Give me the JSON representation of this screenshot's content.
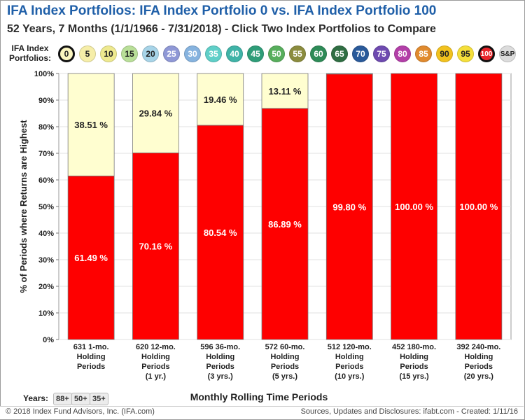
{
  "header": {
    "title": "IFA Index Portfolios:  IFA Index Portfolio 0 vs. IFA Index Portfolio 100",
    "subtitle": "52 Years, 7 Months (1/1/1966 - 7/31/2018)  - Click Two Index Portfolios to Compare"
  },
  "portfolio_selector": {
    "label_line1": "IFA Index",
    "label_line2": "Portfolios:",
    "items": [
      {
        "label": "0",
        "color": "#fbf6c0",
        "selected": true
      },
      {
        "label": "5",
        "color": "#f6eea8",
        "selected": false
      },
      {
        "label": "10",
        "color": "#eee98f",
        "selected": false
      },
      {
        "label": "15",
        "color": "#b9df98",
        "selected": false
      },
      {
        "label": "20",
        "color": "#a7d4e8",
        "selected": false
      },
      {
        "label": "25",
        "color": "#8f98d6",
        "selected": false
      },
      {
        "label": "30",
        "color": "#86b3df",
        "selected": false
      },
      {
        "label": "35",
        "color": "#5fcfc8",
        "selected": false
      },
      {
        "label": "40",
        "color": "#3fb3a7",
        "selected": false
      },
      {
        "label": "45",
        "color": "#2e9d78",
        "selected": false
      },
      {
        "label": "50",
        "color": "#57ae5c",
        "selected": false
      },
      {
        "label": "55",
        "color": "#8b8c3e",
        "selected": false
      },
      {
        "label": "60",
        "color": "#2e8b57",
        "selected": false
      },
      {
        "label": "65",
        "color": "#2f6e43",
        "selected": false
      },
      {
        "label": "70",
        "color": "#2a5a9a",
        "selected": false
      },
      {
        "label": "75",
        "color": "#6e4ab0",
        "selected": false
      },
      {
        "label": "80",
        "color": "#b33fa8",
        "selected": false
      },
      {
        "label": "85",
        "color": "#e08a2e",
        "selected": false
      },
      {
        "label": "90",
        "color": "#f2c21e",
        "selected": false
      },
      {
        "label": "95",
        "color": "#f5df3a",
        "selected": false
      },
      {
        "label": "100",
        "color": "#e8252a",
        "selected": true
      },
      {
        "label": "S&P",
        "color": "#dcdcdc",
        "selected": false
      }
    ]
  },
  "chart_data": {
    "type": "bar",
    "stacked": true,
    "ylabel": "% of Periods where Returns are Highest",
    "xlabel": "Monthly Rolling Time Periods",
    "ylim": [
      0,
      100
    ],
    "yticks": [
      "0%",
      "10%",
      "20%",
      "30%",
      "40%",
      "50%",
      "60%",
      "70%",
      "80%",
      "90%",
      "100%"
    ],
    "grid": true,
    "categories": [
      "631 1-mo.|Holding|Periods",
      "620 12-mo.|Holding|Periods|(1 yr.)",
      "596 36-mo.|Holding|Periods|(3 yrs.)",
      "572 60-mo.|Holding|Periods|(5 yrs.)",
      "512 120-mo.|Holding|Periods|(10 yrs.)",
      "452 180-mo.|Holding|Periods|(15 yrs.)",
      "392 240-mo.|Holding|Periods|(20 yrs.)"
    ],
    "series": [
      {
        "color": "#fe0000",
        "text_color": "#ffffff",
        "values": [
          61.49,
          70.16,
          80.54,
          86.89,
          99.8,
          100.0,
          100.0
        ],
        "labels": [
          "61.49 %",
          "70.16 %",
          "80.54 %",
          "86.89 %",
          "99.80 %",
          "100.00 %",
          "100.00 %"
        ]
      },
      {
        "color": "#fffed0",
        "text_color": "#222222",
        "values": [
          38.51,
          29.84,
          19.46,
          13.11,
          0.2,
          0,
          0
        ],
        "labels": [
          "38.51 %",
          "29.84 %",
          "19.46 %",
          "13.11 %",
          "",
          "",
          ""
        ]
      }
    ]
  },
  "years_filter": {
    "label": "Years:",
    "options": [
      "88+",
      "50+",
      "35+"
    ]
  },
  "footer": {
    "copyright": "© 2018 Index Fund Advisors, Inc. (IFA.com)",
    "sources": "Sources, Updates and Disclosures: ifabt.com - Created: 1/11/16"
  }
}
